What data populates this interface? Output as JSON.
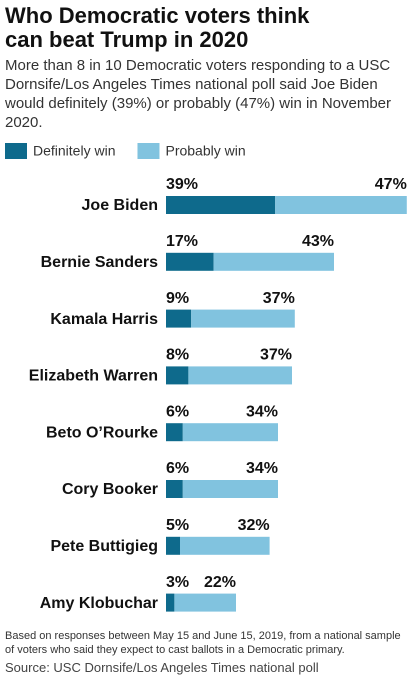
{
  "chart_data": {
    "type": "stacked-bar-horizontal",
    "title": "Who Democratic voters think can beat Trump in 2020",
    "subtitle": "More than 8 in 10 Democratic voters responding to a USC Dornsife/Los Angeles Times national poll said Joe Biden would definitely (39%) or probably (47%) win in November 2020.",
    "categories": [
      "Joe Biden",
      "Bernie Sanders",
      "Kamala Harris",
      "Elizabeth Warren",
      "Beto O’Rourke",
      "Cory Booker",
      "Pete Buttigieg",
      "Amy Klobuchar"
    ],
    "series": [
      {
        "name": "Definitely win",
        "color": "#0e6a8c",
        "values": [
          39,
          17,
          9,
          8,
          6,
          6,
          5,
          3
        ],
        "value_labels": [
          "39%",
          "17%",
          "9%",
          "8%",
          "6%",
          "6%",
          "5%",
          "3%"
        ]
      },
      {
        "name": "Probably win",
        "color": "#81c3df",
        "values": [
          47,
          43,
          37,
          37,
          34,
          34,
          32,
          22
        ],
        "value_labels": [
          "47%",
          "43%",
          "37%",
          "37%",
          "34%",
          "34%",
          "32%",
          "22%"
        ]
      }
    ],
    "note": "Based on responses between May 15 and June 15, 2019, from a national sample of voters who said they expect to cast ballots in a Democratic primary.",
    "source": "Source: USC Dornsife/Los Angeles Times national poll"
  }
}
